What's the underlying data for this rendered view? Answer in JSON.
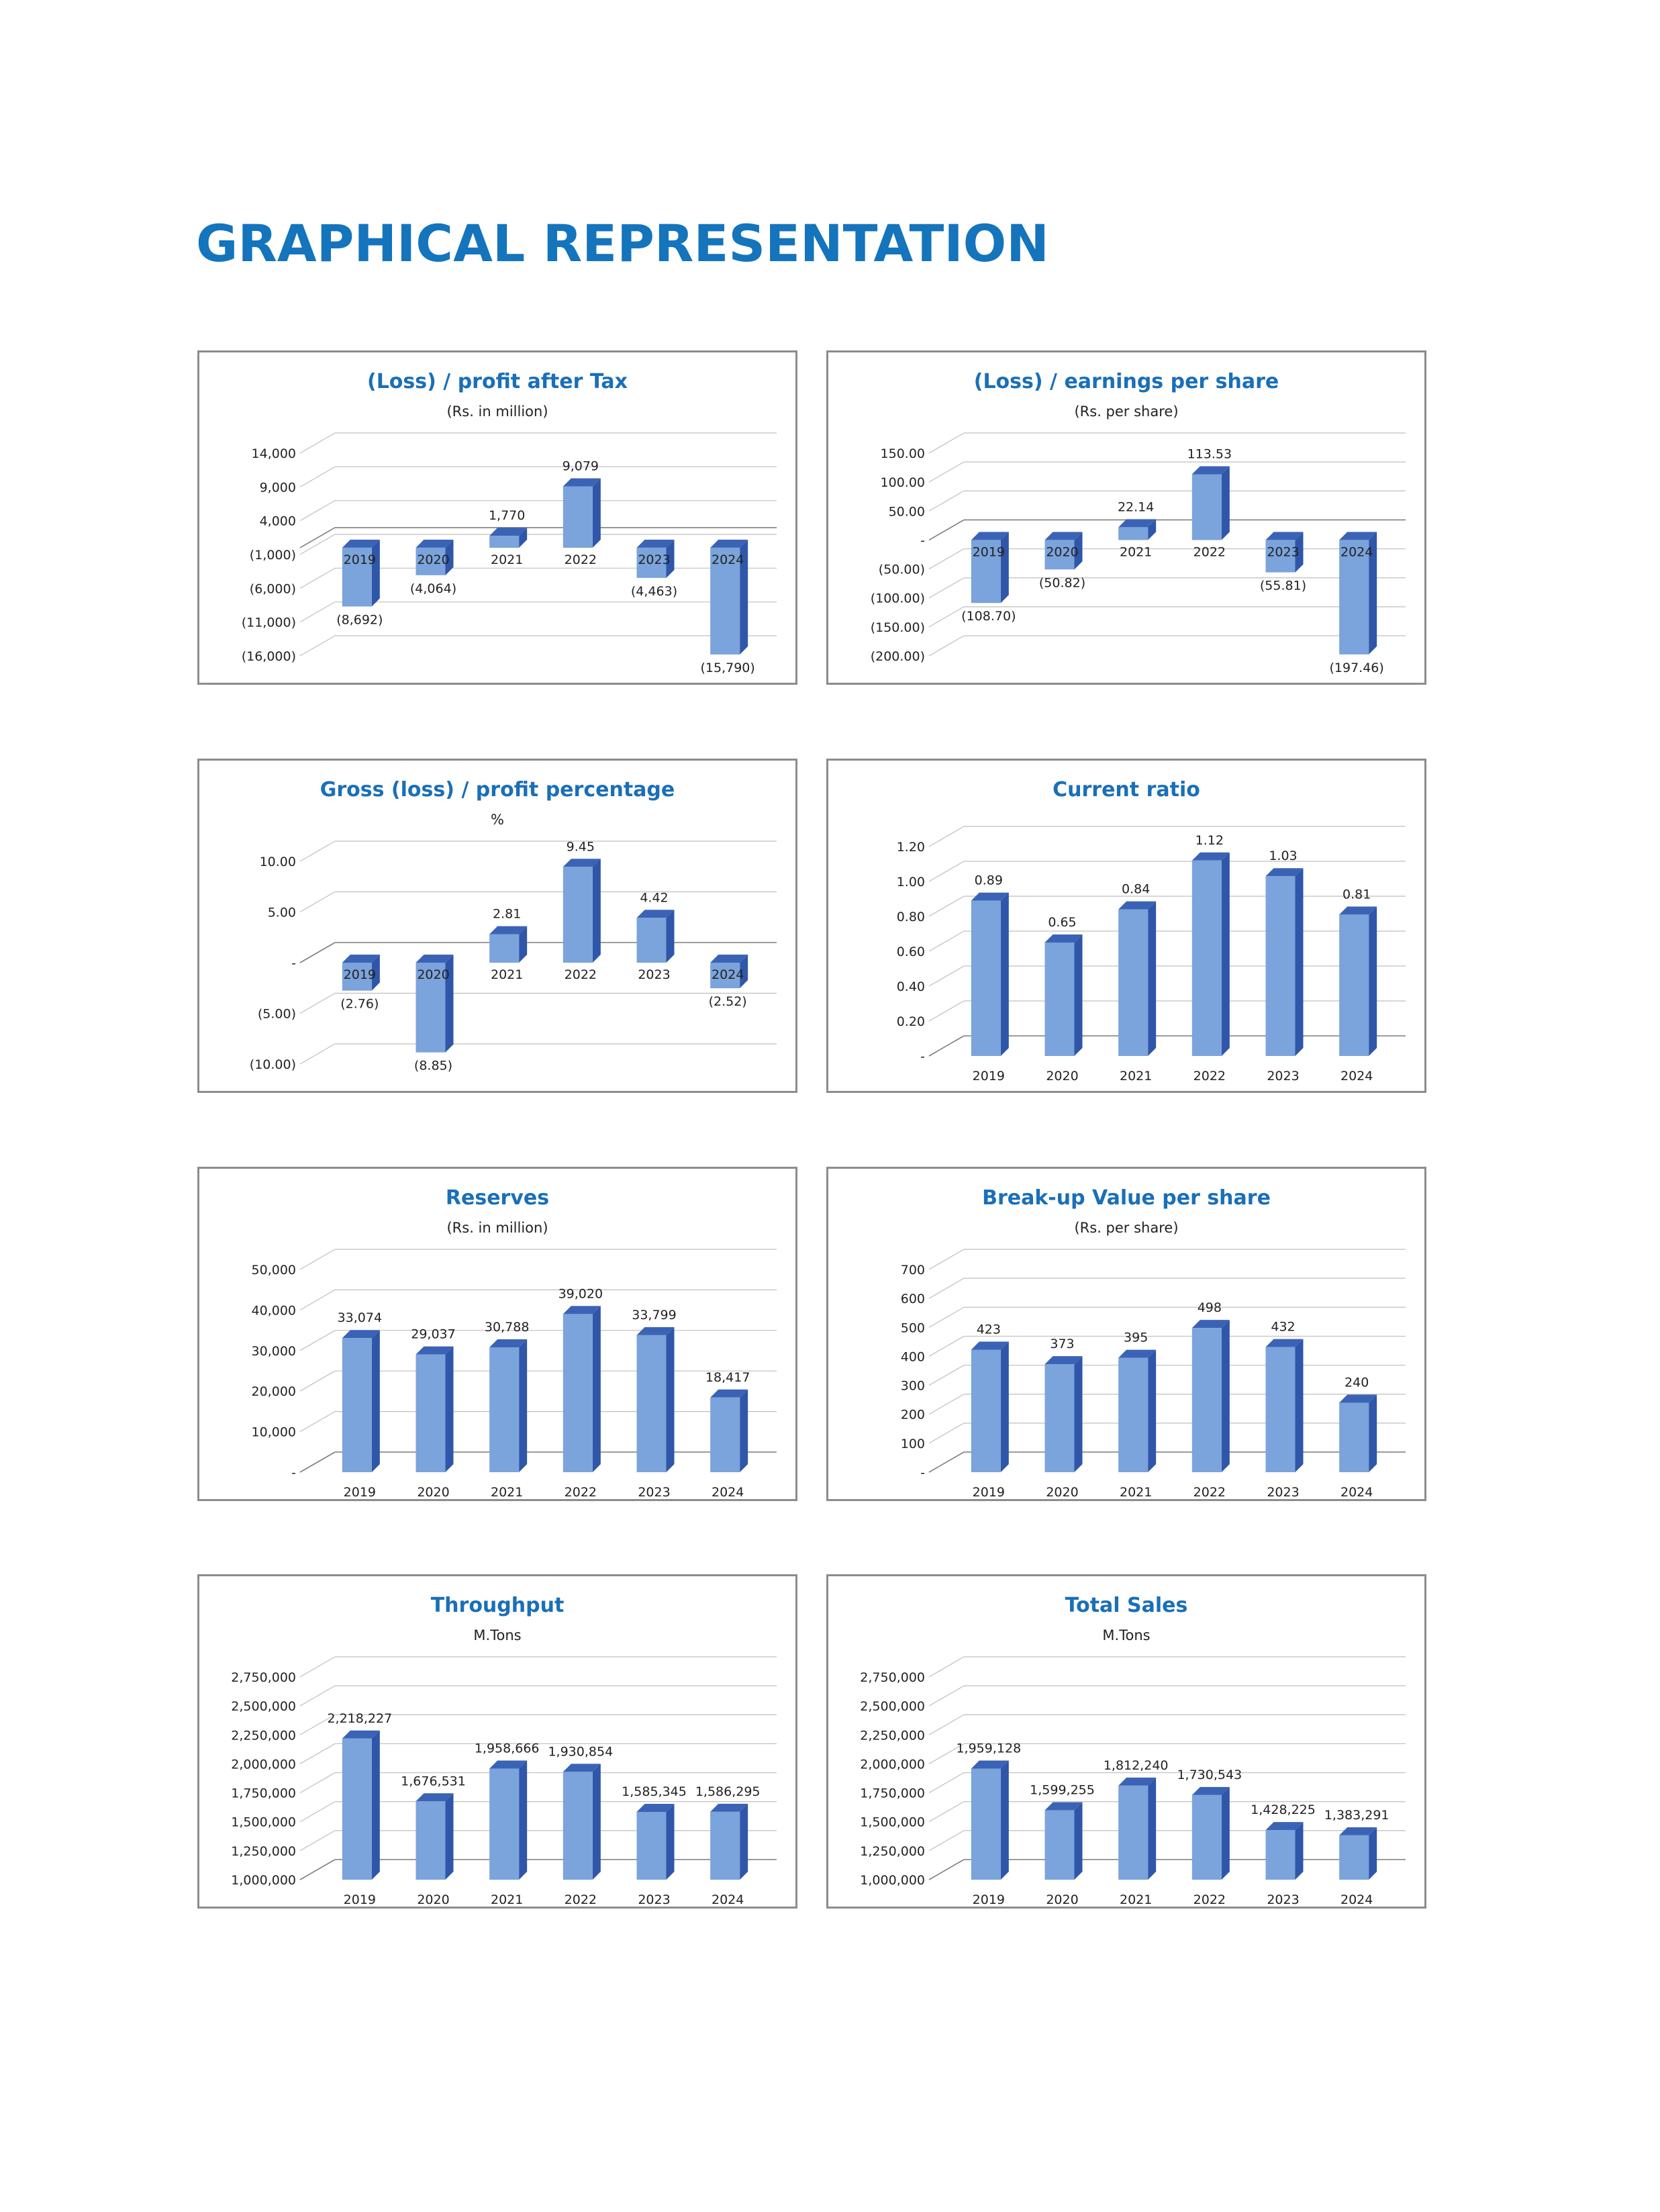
{
  "page_title": "GRAPHICAL REPRESENTATION",
  "colors": {
    "title": "#1474bc",
    "bar_front": "#7ba3dc",
    "bar_side": "#2f56a8",
    "bar_top": "#3b63b5",
    "grid": "#bfbfbf"
  },
  "chart_data": [
    {
      "type": "bar",
      "title": "(Loss) / profit after Tax",
      "subtitle": "(Rs. in million)",
      "categories": [
        "2019",
        "2020",
        "2021",
        "2022",
        "2023",
        "2024"
      ],
      "values": [
        -8692,
        -4064,
        1770,
        9079,
        -4463,
        -15790
      ],
      "value_labels": [
        "(8,692)",
        "(4,064)",
        "1,770",
        "9,079",
        "(4,463)",
        "(15,790)"
      ],
      "yticks": [
        14000,
        9000,
        4000,
        -1000,
        -6000,
        -11000,
        -16000
      ],
      "ytick_labels": [
        "14,000",
        "9,000",
        "4,000",
        "(1,000)",
        "(6,000)",
        "(11,000)",
        "(16,000)"
      ],
      "ylim": [
        -16000,
        14000
      ],
      "category_labels_at_zero": true,
      "grid": true
    },
    {
      "type": "bar",
      "title": "(Loss) / earnings per share",
      "subtitle": "(Rs. per share)",
      "categories": [
        "2019",
        "2020",
        "2021",
        "2022",
        "2023",
        "2024"
      ],
      "values": [
        -108.7,
        -50.82,
        22.14,
        113.53,
        -55.81,
        -197.46
      ],
      "value_labels": [
        "(108.70)",
        "(50.82)",
        "22.14",
        "113.53",
        "(55.81)",
        "(197.46)"
      ],
      "yticks": [
        150,
        100,
        50,
        0,
        -50,
        -100,
        -150,
        -200
      ],
      "ytick_labels": [
        "150.00",
        "100.00",
        "50.00",
        "-",
        "(50.00)",
        "(100.00)",
        "(150.00)",
        "(200.00)"
      ],
      "ylim": [
        -200,
        150
      ],
      "category_labels_at_zero": true,
      "grid": true
    },
    {
      "type": "bar",
      "title": "Gross (loss) / profit percentage",
      "subtitle": "%",
      "categories": [
        "2019",
        "2020",
        "2021",
        "2022",
        "2023",
        "2024"
      ],
      "values": [
        -2.76,
        -8.85,
        2.81,
        9.45,
        4.42,
        -2.52
      ],
      "value_labels": [
        "(2.76)",
        "(8.85)",
        "2.81",
        "9.45",
        "4.42",
        "(2.52)"
      ],
      "yticks": [
        10,
        5,
        0,
        -5,
        -10
      ],
      "ytick_labels": [
        "10.00",
        "5.00",
        "-",
        "(5.00)",
        "(10.00)"
      ],
      "ylim": [
        -10,
        10
      ],
      "category_labels_at_zero": true,
      "grid": true
    },
    {
      "type": "bar",
      "title": "Current ratio",
      "subtitle": "",
      "categories": [
        "2019",
        "2020",
        "2021",
        "2022",
        "2023",
        "2024"
      ],
      "values": [
        0.89,
        0.65,
        0.84,
        1.12,
        1.03,
        0.81
      ],
      "value_labels": [
        "0.89",
        "0.65",
        "0.84",
        "1.12",
        "1.03",
        "0.81"
      ],
      "yticks": [
        1.2,
        1.0,
        0.8,
        0.6,
        0.4,
        0.2,
        0
      ],
      "ytick_labels": [
        "1.20",
        "1.00",
        "0.80",
        "0.60",
        "0.40",
        "0.20",
        "-"
      ],
      "ylim": [
        0,
        1.2
      ],
      "category_labels_at_zero": false,
      "grid": true
    },
    {
      "type": "bar",
      "title": "Reserves",
      "subtitle": "(Rs. in million)",
      "categories": [
        "2019",
        "2020",
        "2021",
        "2022",
        "2023",
        "2024"
      ],
      "values": [
        33074,
        29037,
        30788,
        39020,
        33799,
        18417
      ],
      "value_labels": [
        "33,074",
        "29,037",
        "30,788",
        "39,020",
        "33,799",
        "18,417"
      ],
      "yticks": [
        50000,
        40000,
        30000,
        20000,
        10000,
        0
      ],
      "ytick_labels": [
        "50,000",
        "40,000",
        "30,000",
        "20,000",
        "10,000",
        "-"
      ],
      "ylim": [
        0,
        50000
      ],
      "category_labels_at_zero": false,
      "grid": true
    },
    {
      "type": "bar",
      "title": "Break-up Value per share",
      "subtitle": "(Rs. per share)",
      "categories": [
        "2019",
        "2020",
        "2021",
        "2022",
        "2023",
        "2024"
      ],
      "values": [
        423,
        373,
        395,
        498,
        432,
        240
      ],
      "value_labels": [
        "423",
        "373",
        "395",
        "498",
        "432",
        "240"
      ],
      "yticks": [
        700,
        600,
        500,
        400,
        300,
        200,
        100,
        0
      ],
      "ytick_labels": [
        "700",
        "600",
        "500",
        "400",
        "300",
        "200",
        "100",
        "-"
      ],
      "ylim": [
        0,
        700
      ],
      "category_labels_at_zero": false,
      "grid": true
    },
    {
      "type": "bar",
      "title": "Throughput",
      "subtitle": "M.Tons",
      "categories": [
        "2019",
        "2020",
        "2021",
        "2022",
        "2023",
        "2024"
      ],
      "values": [
        2218227,
        1676531,
        1958666,
        1930854,
        1585345,
        1586295
      ],
      "value_labels": [
        "2,218,227",
        "1,676,531",
        "1,958,666",
        "1,930,854",
        "1,585,345",
        "1,586,295"
      ],
      "yticks": [
        2750000,
        2500000,
        2250000,
        2000000,
        1750000,
        1500000,
        1250000,
        1000000
      ],
      "ytick_labels": [
        "2,750,000",
        "2,500,000",
        "2,250,000",
        "2,000,000",
        "1,750,000",
        "1,500,000",
        "1,250,000",
        "1,000,000"
      ],
      "ylim": [
        1000000,
        2750000
      ],
      "category_labels_at_zero": false,
      "grid": true
    },
    {
      "type": "bar",
      "title": "Total Sales",
      "subtitle": "M.Tons",
      "categories": [
        "2019",
        "2020",
        "2021",
        "2022",
        "2023",
        "2024"
      ],
      "values": [
        1959128,
        1599255,
        1812240,
        1730543,
        1428225,
        1383291
      ],
      "value_labels": [
        "1,959,128",
        "1,599,255",
        "1,812,240",
        "1,730,543",
        "1,428,225",
        "1,383,291"
      ],
      "yticks": [
        2750000,
        2500000,
        2250000,
        2000000,
        1750000,
        1500000,
        1250000,
        1000000
      ],
      "ytick_labels": [
        "2,750,000",
        "2,500,000",
        "2,250,000",
        "2,000,000",
        "1,750,000",
        "1,500,000",
        "1,250,000",
        "1,000,000"
      ],
      "ylim": [
        1000000,
        2750000
      ],
      "category_labels_at_zero": false,
      "grid": true
    }
  ]
}
